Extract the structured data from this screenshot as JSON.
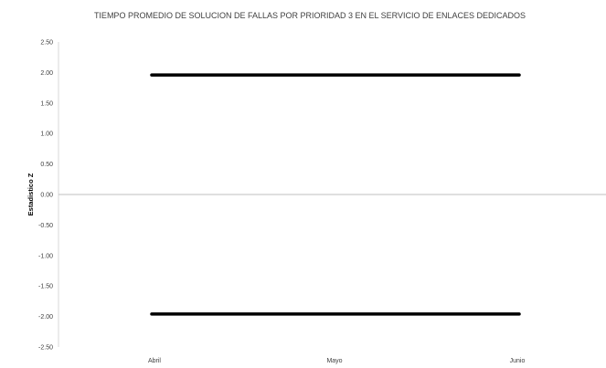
{
  "chart_data": {
    "type": "line",
    "title": "TIEMPO PROMEDIO DE SOLUCION DE FALLAS POR PRIORIDAD 3 EN EL SERVICIO DE ENLACES DEDICADOS",
    "xlabel": "",
    "ylabel": "Estadistico Z",
    "categories": [
      "Abril",
      "Mayo",
      "Junio"
    ],
    "ylim": [
      -2.5,
      2.5
    ],
    "yticks": [
      "2.50",
      "2.00",
      "1.50",
      "1.00",
      "0.50",
      "0.00",
      "-0.50",
      "-1.00",
      "-1.50",
      "-2.00",
      "-2.50"
    ],
    "series": [
      {
        "values": [
          1.96,
          1.96,
          1.96
        ],
        "color": "#000000"
      },
      {
        "values": [
          -1.96,
          -1.96,
          -1.96
        ],
        "color": "#000000"
      }
    ],
    "grid": false,
    "legend": "none"
  }
}
